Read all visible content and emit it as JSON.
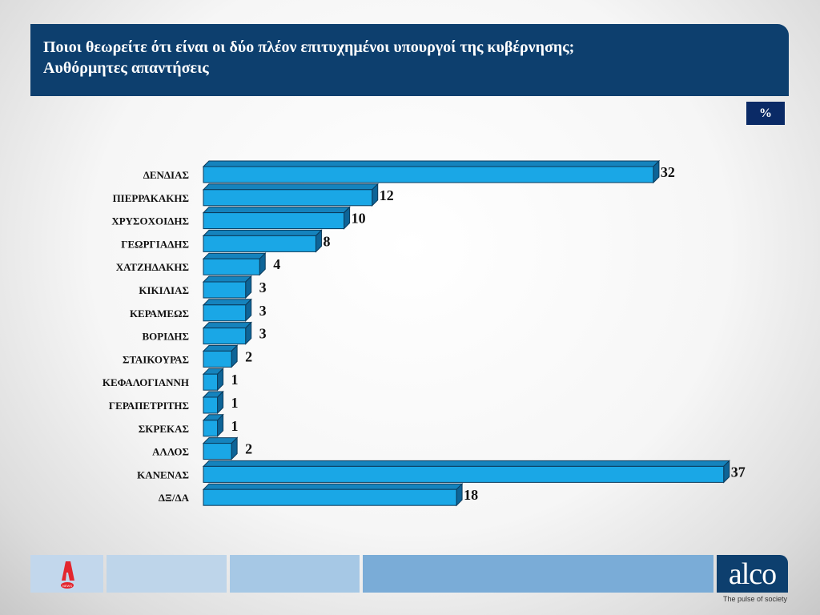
{
  "header": {
    "title_line1": "Ποιοι θεωρείτε ότι είναι οι δύο πλέον επιτυχημένοι υπουργοί της κυβέρνησης;",
    "title_line2": "Αυθόρμητες απαντήσεις"
  },
  "unit_badge": "%",
  "chart_data": {
    "type": "bar",
    "orientation": "horizontal",
    "style": "3d",
    "bar_color": "#1aa7e6",
    "categories": [
      "ΔΕΝΔΙΑΣ",
      "ΠΙΕΡΡΑΚΑΚΗΣ",
      "ΧΡΥΣΟΧΟΙΔΗΣ",
      "ΓΕΩΡΓΙΑΔΗΣ",
      "ΧΑΤΖΗΔΑΚΗΣ",
      "ΚΙΚΙΛΙΑΣ",
      "ΚΕΡΑΜΕΩΣ",
      "ΒΟΡΙΔΗΣ",
      "ΣΤΑΙΚΟΥΡΑΣ",
      "ΚΕΦΑΛΟΓΙΑΝΝΗ",
      "ΓΕΡΑΠΕΤΡΙΤΗΣ",
      "ΣΚΡΕΚΑΣ",
      "ΑΛΛΟΣ",
      "ΚΑΝΕΝΑΣ",
      "ΔΞ/ΔΑ"
    ],
    "values": [
      32,
      12,
      10,
      8,
      4,
      3,
      3,
      3,
      2,
      1,
      1,
      1,
      2,
      37,
      18
    ],
    "grid": false
  },
  "footer": {
    "brand_logo": "alco",
    "tagline": "The pulse of society",
    "partner_logo": "A NEWS"
  }
}
